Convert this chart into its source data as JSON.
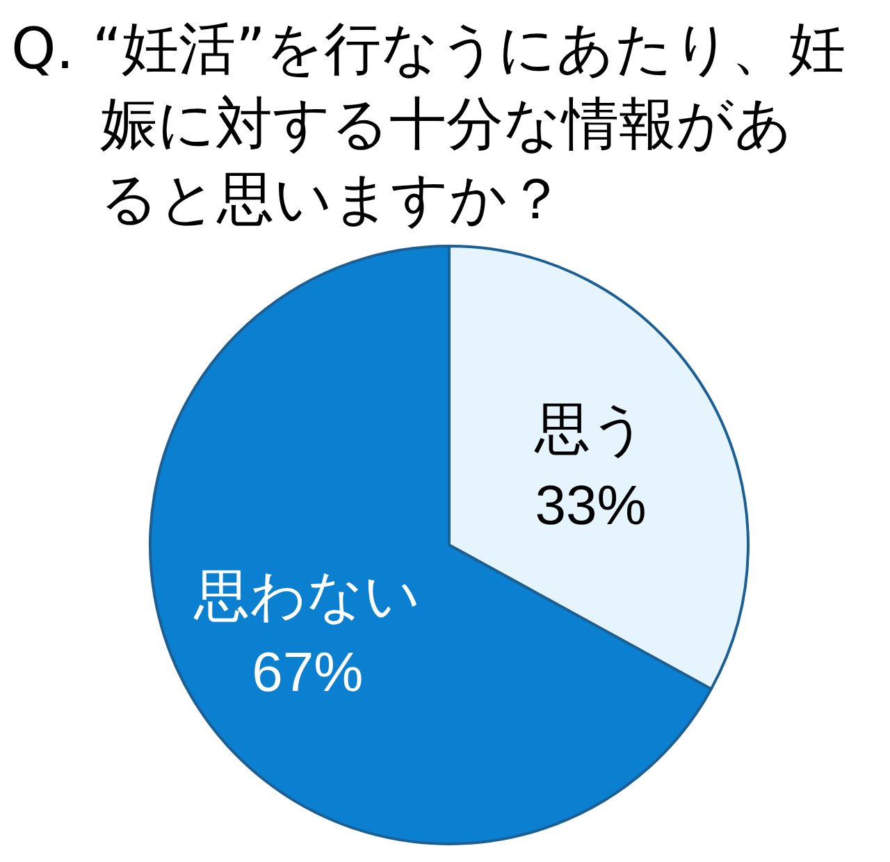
{
  "chart_data": {
    "type": "pie",
    "title": "Q. “妊活”を行なうにあたり、妊娠に対する十分な情報があると思いますか？",
    "categories": [
      "思う",
      "思わない"
    ],
    "values": [
      33,
      67
    ],
    "colors": [
      "#e6f5fd",
      "#0b80d0"
    ],
    "value_labels": [
      "33%",
      "67%"
    ]
  }
}
